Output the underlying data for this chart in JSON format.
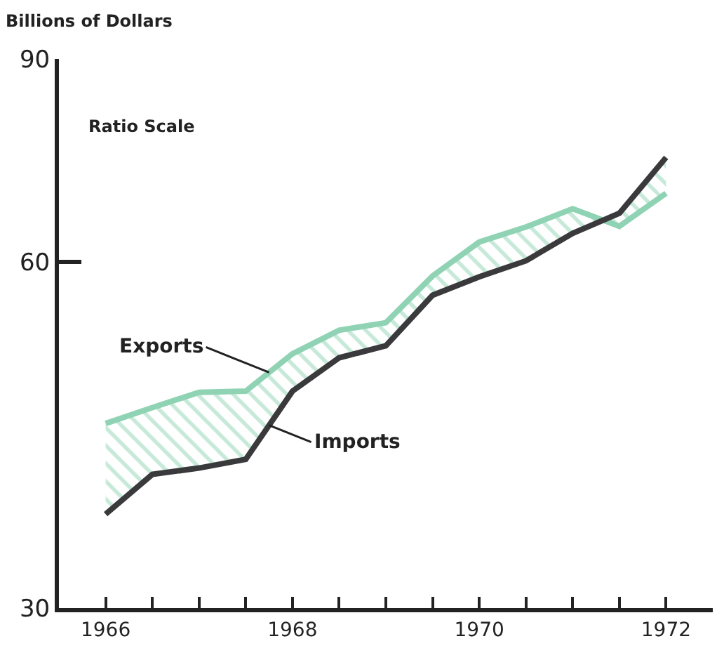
{
  "chart_data": {
    "type": "line",
    "ylabel": "Billions of Dollars",
    "annotations": [
      "Ratio Scale"
    ],
    "x": [
      1966.5,
      1967,
      1967.5,
      1968,
      1968.5,
      1969,
      1969.5,
      1970,
      1970.5,
      1971,
      1971.5,
      1972,
      1972.5
    ],
    "series": [
      {
        "name": "Exports",
        "color": "#8fd3b4",
        "values": [
          43.4,
          44.8,
          46.2,
          46.3,
          49.9,
          52.3,
          53.1,
          58.3,
          62.4,
          64.3,
          66.7,
          64.4,
          68.8
        ],
        "lower": [
          36.2,
          39.2,
          39.7,
          40.4,
          46.3,
          49.5,
          50.7,
          56.1,
          58.2,
          60.1,
          63.5,
          66.1,
          73.9
        ],
        "upper": [
          43.4,
          44.8,
          46.2,
          46.3,
          49.9,
          52.3,
          53.1,
          58.3,
          62.4,
          64.3,
          66.7,
          64.4,
          68.8
        ]
      },
      {
        "name": "Imports",
        "color": "#3a3a3c",
        "values": [
          36.2,
          39.2,
          39.7,
          40.4,
          46.3,
          49.5,
          50.7,
          56.1,
          58.2,
          60.1,
          63.5,
          66.1,
          73.9
        ]
      }
    ],
    "log": true,
    "ylim": [
      30,
      90
    ],
    "yticks": [
      30,
      60,
      90
    ],
    "xlim": [
      1966,
      1973
    ],
    "xticks": [
      {
        "value": 1966.5,
        "label": "1966"
      },
      {
        "value": 1967,
        "label": null
      },
      {
        "value": 1967.5,
        "label": null
      },
      {
        "value": 1968,
        "label": null
      },
      {
        "value": 1968.5,
        "label": "1968"
      },
      {
        "value": 1969,
        "label": null
      },
      {
        "value": 1969.5,
        "label": null
      },
      {
        "value": 1970,
        "label": null
      },
      {
        "value": 1970.5,
        "label": "1970"
      },
      {
        "value": 1971,
        "label": null
      },
      {
        "value": 1971.5,
        "label": null
      },
      {
        "value": 1972,
        "label": null
      },
      {
        "value": 1972.5,
        "label": "1972"
      }
    ],
    "legend": false,
    "marker": "none",
    "line_style": "solid"
  }
}
